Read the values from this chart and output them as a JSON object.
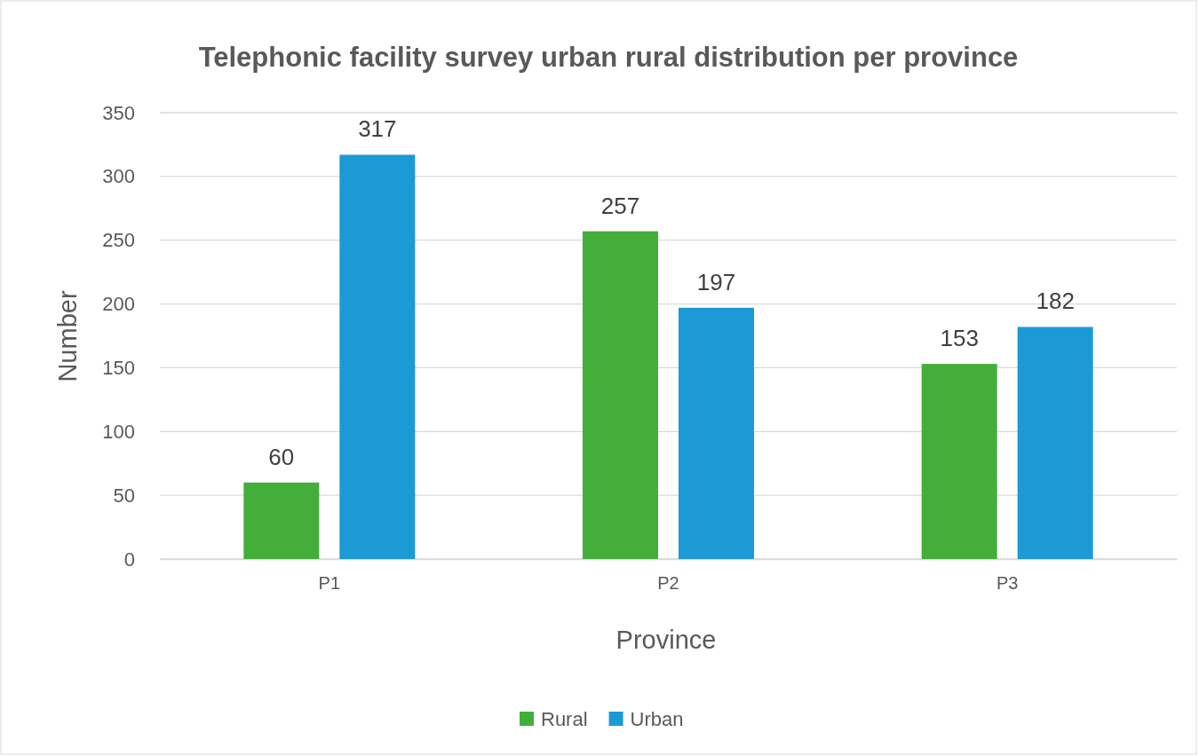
{
  "chart_data": {
    "type": "bar",
    "title": "Telephonic facility survey urban rural distribution per province",
    "xlabel": "Province",
    "ylabel": "Number",
    "categories": [
      "P1",
      "P2",
      "P3"
    ],
    "series": [
      {
        "name": "Rural",
        "color": "#43ae3a",
        "values": [
          60,
          257,
          153
        ]
      },
      {
        "name": "Urban",
        "color": "#1b9ad6",
        "values": [
          317,
          197,
          182
        ]
      }
    ],
    "ylim": [
      0,
      350
    ],
    "yticks": [
      0,
      50,
      100,
      150,
      200,
      250,
      300,
      350
    ],
    "grid": "y",
    "legend": "bottom",
    "data_labels": true
  }
}
